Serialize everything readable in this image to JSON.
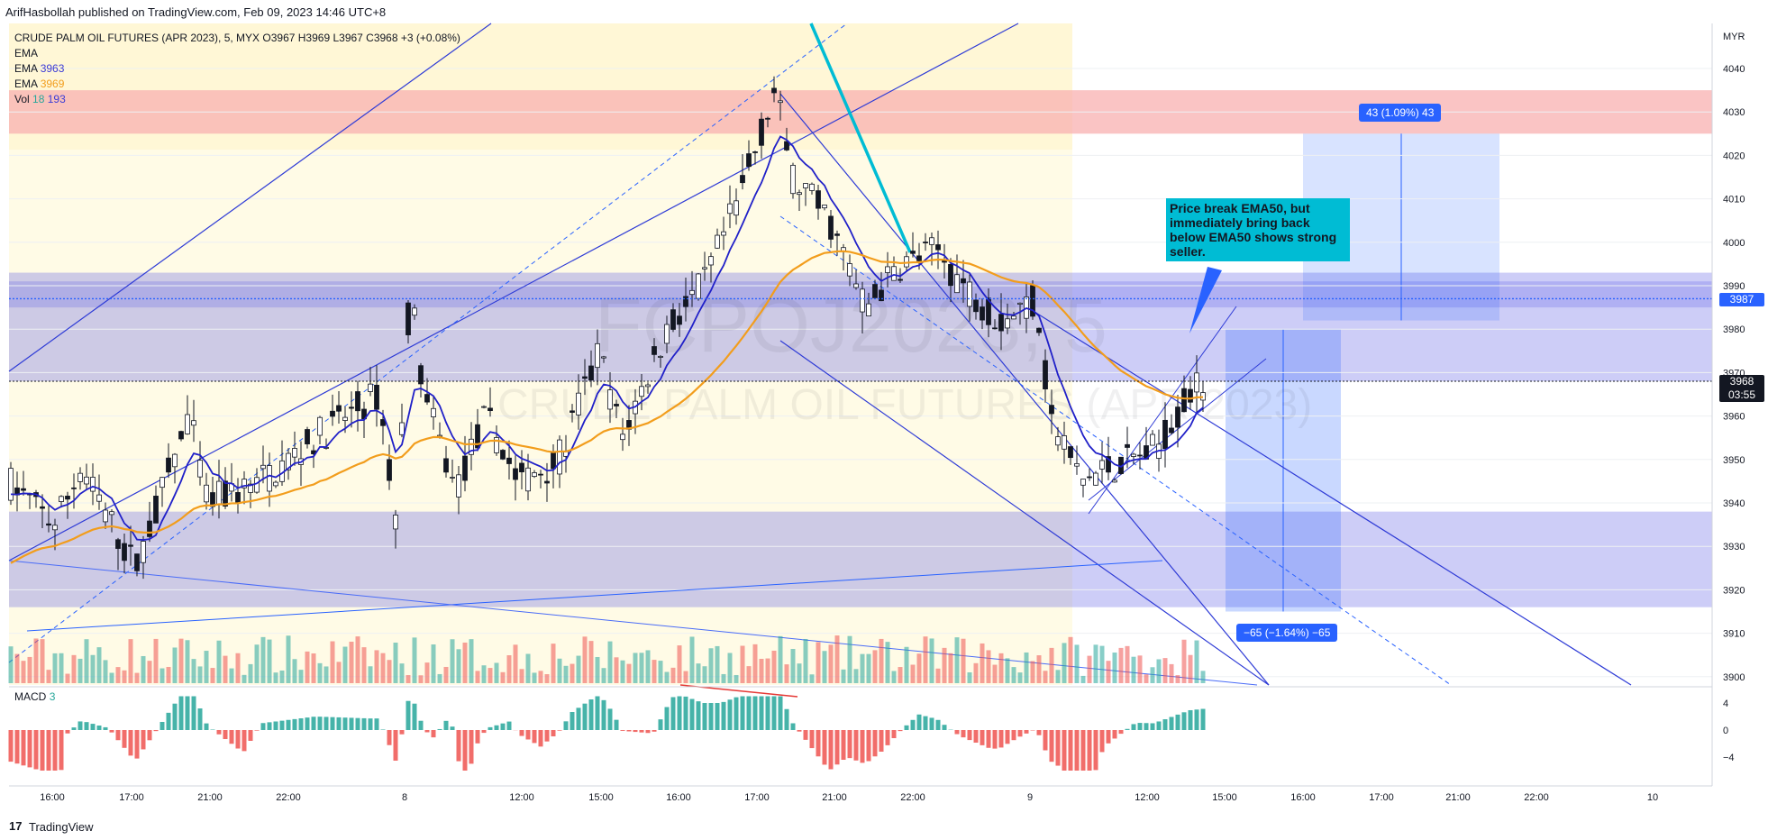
{
  "header": {
    "published": "ArifHasbollah published on TradingView.com, Feb 09, 2023 14:46 UTC+8"
  },
  "legend": {
    "symbol": "CRUDE PALM OIL FUTURES (APR 2023), 5, MYX",
    "ohlc": "O3967  H3969  L3967  C3968  +3 (+0.08%)",
    "ema_label": "EMA",
    "ema1_label": "EMA",
    "ema1_value": "3963",
    "ema2_label": "EMA",
    "ema2_value": "3969",
    "vol_label": "Vol",
    "vol_value1": "18",
    "vol_value2": "193"
  },
  "watermark": {
    "big": "FCPOJ2023, 5",
    "small": "CRUDE PALM OIL FUTURES (APR 2023)"
  },
  "price_axis": {
    "currency": "MYR",
    "ticks": [
      "4040",
      "4030",
      "4020",
      "4010",
      "4000",
      "3990",
      "3980",
      "3970",
      "3960",
      "3950",
      "3940",
      "3930",
      "3920",
      "3910",
      "3900"
    ],
    "current_price": "3968",
    "countdown": "03:55",
    "line_price": "3987"
  },
  "macd": {
    "label": "MACD",
    "value": "3",
    "ticks": [
      "4",
      "0",
      "−4"
    ]
  },
  "time_axis": [
    "16:00",
    "17:00",
    "21:00",
    "22:00",
    "8",
    "12:00",
    "15:00",
    "16:00",
    "17:00",
    "21:00",
    "22:00",
    "9",
    "12:00",
    "15:00",
    "16:00",
    "17:00",
    "21:00",
    "22:00",
    "10"
  ],
  "measures": {
    "up": "43 (1.09%) 43",
    "down": "−65 (−1.64%) −65"
  },
  "annotation": "Price break EMA50, but immediately bring back below EMA50 shows strong seller.",
  "footer": {
    "brand": "TradingView",
    "logo": "17"
  },
  "colors": {
    "ema_fast": "#2020c8",
    "ema_slow": "#f29d1c",
    "up": "#26a69a",
    "down": "#ef5350",
    "zone_blue": "#5a5ae6",
    "zone_red": "#f8b0b0"
  }
}
